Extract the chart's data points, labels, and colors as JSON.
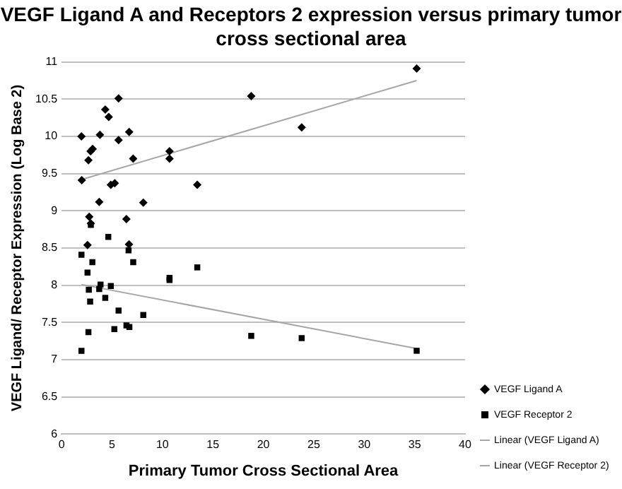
{
  "chart_data": {
    "type": "scatter",
    "title": "VEGF Ligand A and Receptors 2 expression versus  primary tumor cross sectional area",
    "xlabel": "Primary Tumor Cross Sectional Area",
    "ylabel": "VEGF Ligand/ Receptor Expression (Log Base 2)",
    "xlim": [
      0,
      40
    ],
    "xticks": [
      0,
      5,
      10,
      15,
      20,
      25,
      30,
      35,
      40
    ],
    "ylim": [
      6,
      11
    ],
    "yticks": [
      6,
      6.5,
      7,
      7.5,
      8,
      8.5,
      9,
      9.5,
      10,
      10.5,
      11
    ],
    "grid": "y",
    "legend": "right",
    "series": [
      {
        "name": "VEGF Ligand A",
        "color": "#000000",
        "marker": "diamond",
        "x": [
          5.65,
          4.33,
          4.67,
          1.97,
          3.8,
          6.7,
          5.65,
          2.87,
          3.08,
          2.66,
          7.1,
          10.7,
          10.7,
          2.0,
          4.88,
          5.27,
          13.45,
          3.73,
          8.1,
          2.74,
          2.9,
          6.43,
          2.57,
          6.68,
          35.2,
          23.8,
          18.8
        ],
        "values": [
          10.51,
          10.36,
          10.26,
          10.0,
          10.02,
          10.06,
          9.95,
          9.8,
          9.83,
          9.68,
          9.7,
          9.8,
          9.7,
          9.41,
          9.35,
          9.37,
          9.35,
          9.12,
          9.11,
          8.92,
          8.83,
          8.89,
          8.54,
          8.55,
          10.91,
          10.12,
          10.54
        ]
      },
      {
        "name": "VEGF Receptor 2",
        "color": "#000000",
        "marker": "square",
        "x": [
          2.9,
          4.63,
          1.97,
          6.64,
          3.05,
          7.1,
          2.57,
          13.45,
          10.7,
          10.7,
          3.86,
          3.73,
          4.88,
          2.7,
          2.83,
          4.33,
          5.65,
          8.1,
          5.23,
          6.43,
          6.72,
          2.66,
          1.97,
          18.8,
          23.8,
          35.2
        ],
        "values": [
          8.81,
          8.65,
          8.41,
          8.47,
          8.31,
          8.31,
          8.17,
          8.24,
          8.1,
          8.07,
          8.01,
          7.95,
          7.99,
          7.94,
          7.78,
          7.83,
          7.66,
          7.6,
          7.41,
          7.46,
          7.44,
          7.37,
          7.12,
          7.32,
          7.29,
          7.12
        ]
      },
      {
        "name": "Linear (VEGF Ligand A)",
        "type": "line",
        "color": "#a6a6a6",
        "marker": "none",
        "x": [
          2.0,
          35.2
        ],
        "values": [
          9.42,
          10.75
        ]
      },
      {
        "name": "Linear (VEGF Receptor 2)",
        "type": "line",
        "color": "#a6a6a6",
        "marker": "none",
        "x": [
          1.97,
          35.2
        ],
        "values": [
          8.01,
          7.15
        ]
      }
    ]
  }
}
